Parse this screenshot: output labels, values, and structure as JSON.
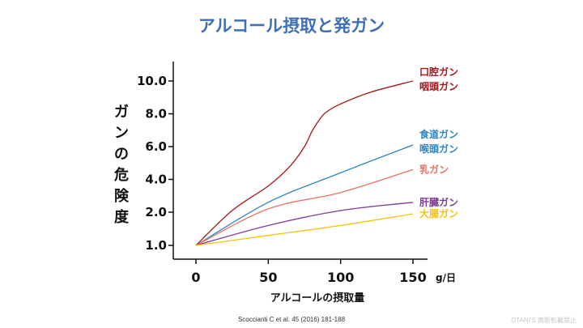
{
  "title": "アルコール摂取と発ガン",
  "citation": "Scoccianti C et al. 45 (2016) 181-188",
  "watermark": "OTANI'S 無断転載禁止",
  "chart_data": {
    "type": "line",
    "title": "アルコール摂取と発ガン",
    "xlabel": "アルコールの摂取量",
    "x_unit": "g/日",
    "ylabel": "ガンの危険度",
    "x_ticks": [
      "0",
      "50",
      "100",
      "150"
    ],
    "y_ticks": [
      "1.0",
      "2.0",
      "4.0",
      "6.0",
      "8.0",
      "10.0"
    ],
    "grid": false,
    "legend": "right, inline labels",
    "series": [
      {
        "labels": [
          "口腔ガン",
          "咽頭ガン"
        ],
        "color": "#a4161a",
        "x": [
          0,
          25,
          50,
          65,
          75,
          80,
          85,
          90,
          100,
          120,
          150
        ],
        "y": [
          1.0,
          2.1,
          3.6,
          4.8,
          6.0,
          6.9,
          7.6,
          8.1,
          8.6,
          9.3,
          10.0
        ]
      },
      {
        "labels": [
          "食道ガン",
          "喉頭ガン"
        ],
        "color": "#2e86c1",
        "x": [
          0,
          50,
          100,
          150
        ],
        "y": [
          1.0,
          2.6,
          4.4,
          6.1
        ]
      },
      {
        "labels": [
          "乳ガン"
        ],
        "color": "#ec7063",
        "x": [
          0,
          50,
          100,
          150
        ],
        "y": [
          1.0,
          2.2,
          3.2,
          4.6
        ]
      },
      {
        "labels": [
          "肝臓ガン"
        ],
        "color": "#7d3c98",
        "x": [
          0,
          50,
          100,
          150
        ],
        "y": [
          1.0,
          1.6,
          2.1,
          2.6
        ]
      },
      {
        "labels": [
          "大腸ガン"
        ],
        "color": "#f4c20d",
        "x": [
          0,
          50,
          100,
          150
        ],
        "y": [
          1.0,
          1.3,
          1.6,
          1.95
        ]
      }
    ]
  }
}
